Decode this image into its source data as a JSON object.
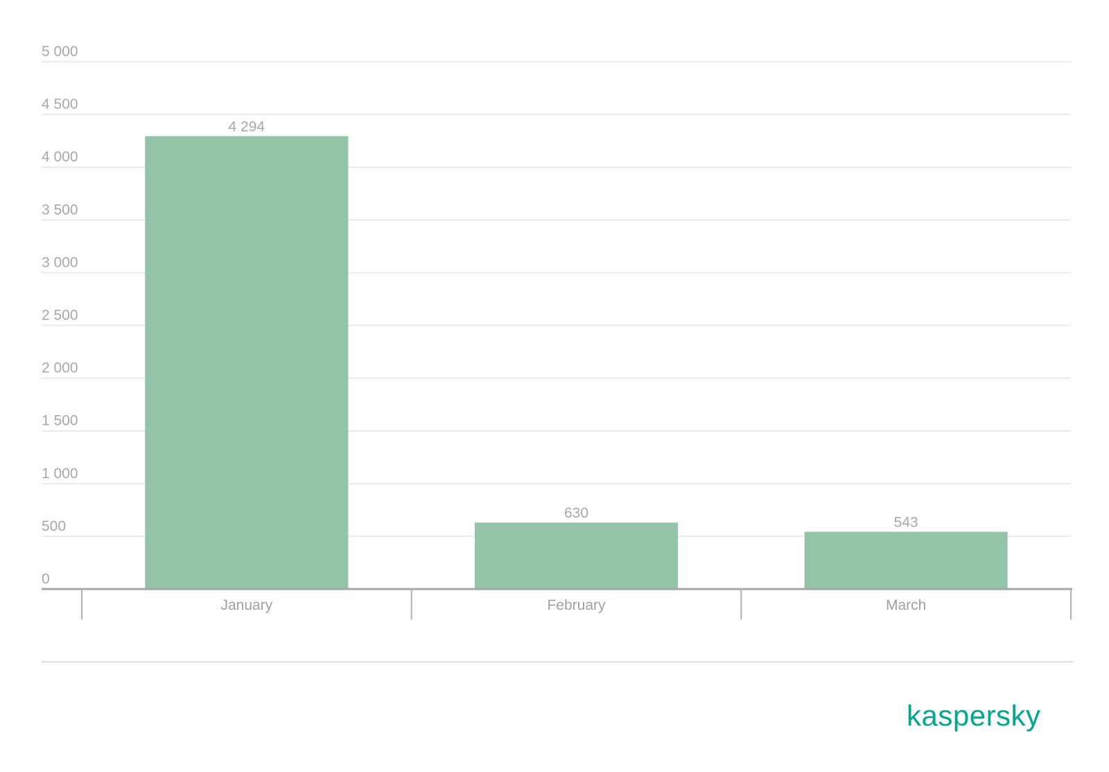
{
  "chart_data": {
    "type": "bar",
    "categories": [
      "January",
      "February",
      "March"
    ],
    "values": [
      4294,
      630,
      543
    ],
    "value_labels": [
      "4 294",
      "630",
      "543"
    ],
    "yticks": [
      {
        "value": 0,
        "label": "0"
      },
      {
        "value": 500,
        "label": "500"
      },
      {
        "value": 1000,
        "label": "1 000"
      },
      {
        "value": 1500,
        "label": "1 500"
      },
      {
        "value": 2000,
        "label": "2 000"
      },
      {
        "value": 2500,
        "label": "2 500"
      },
      {
        "value": 3000,
        "label": "3 000"
      },
      {
        "value": 3500,
        "label": "3 500"
      },
      {
        "value": 4000,
        "label": "4 000"
      },
      {
        "value": 4500,
        "label": "4 500"
      },
      {
        "value": 5000,
        "label": "5 000"
      }
    ],
    "ylim": [
      0,
      5000
    ],
    "title": "",
    "xlabel": "",
    "ylabel": "",
    "grid": true,
    "legend": "none",
    "colors": {
      "bar": "#93c4a8",
      "tick_text": "#a8a8a8",
      "grid": "#e6e6e6",
      "axis": "#a6a6a6"
    }
  },
  "brand": {
    "logo_text": "kaspersky",
    "color": "#00a88e"
  }
}
